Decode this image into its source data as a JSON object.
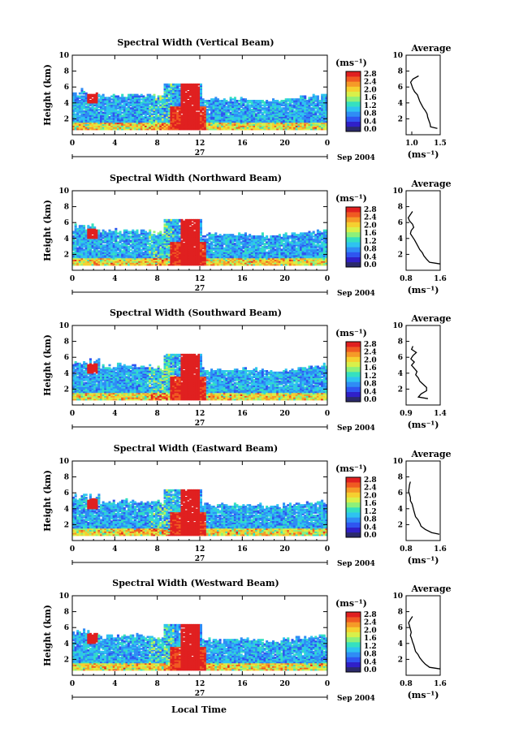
{
  "figure": {
    "xlabel": "Local Time",
    "date_label": "Sep 2004",
    "day_label": "27",
    "ylabel": "Height (km)",
    "unit": "(ms⁻¹)",
    "average_title": "Average",
    "avg_xlabel": "(ms⁻¹)",
    "x_ticks": [
      "0",
      "4",
      "8",
      "12",
      "16",
      "20",
      "0"
    ],
    "y_ticks": [
      "2",
      "4",
      "6",
      "8",
      "10"
    ],
    "colorbar_ticks": [
      "0.0",
      "0.4",
      "0.8",
      "1.2",
      "1.6",
      "2.0",
      "2.4",
      "2.8"
    ],
    "colormap": [
      "#2b2a6b",
      "#3020c8",
      "#2f55f0",
      "#2f8cf5",
      "#2ec3f0",
      "#35e0c0",
      "#8df07a",
      "#d8f04a",
      "#f5d030",
      "#f59a28",
      "#f05a22",
      "#e02020"
    ]
  },
  "chart_data": [
    {
      "type": "heatmap",
      "title": "Spectral Width (Vertical Beam)",
      "x_range_hours": [
        0,
        24
      ],
      "ylim_km": [
        0,
        10
      ],
      "clim": [
        0.0,
        2.8
      ],
      "average_profile": {
        "title": "Average",
        "xlabel": "(ms⁻¹)",
        "xlim": [
          0.9,
          1.5
        ],
        "xticks": [
          "1.0",
          "1.5"
        ],
        "ylim": [
          0,
          10
        ],
        "height_km": [
          0.8,
          1.0,
          1.4,
          1.8,
          2.2,
          2.6,
          3.0,
          3.4,
          3.8,
          4.2,
          4.6,
          5.0,
          5.4,
          5.8,
          6.2,
          6.6,
          7.0,
          7.4
        ],
        "width_ms": [
          1.45,
          1.33,
          1.32,
          1.3,
          1.28,
          1.27,
          1.24,
          1.2,
          1.17,
          1.14,
          1.12,
          1.1,
          1.05,
          1.02,
          1.0,
          0.98,
          1.02,
          1.12
        ]
      }
    },
    {
      "type": "heatmap",
      "title": "Spectral Width (Northward Beam)",
      "x_range_hours": [
        0,
        24
      ],
      "ylim_km": [
        0,
        10
      ],
      "clim": [
        0.0,
        2.8
      ],
      "average_profile": {
        "title": "Average",
        "xlabel": "(ms⁻¹)",
        "xlim": [
          0.8,
          1.6
        ],
        "xticks": [
          "0.8",
          "1.6"
        ],
        "ylim": [
          0,
          10
        ],
        "height_km": [
          0.8,
          1.0,
          1.4,
          1.8,
          2.2,
          2.6,
          3.0,
          3.4,
          3.8,
          4.2,
          4.6,
          5.0,
          5.4,
          5.8,
          6.2,
          6.6,
          7.0,
          7.4
        ],
        "width_ms": [
          1.6,
          1.35,
          1.28,
          1.22,
          1.18,
          1.12,
          1.08,
          1.04,
          1.0,
          0.95,
          0.9,
          0.92,
          0.98,
          0.95,
          0.88,
          0.85,
          0.9,
          0.95
        ]
      }
    },
    {
      "type": "heatmap",
      "title": "Spectral Width (Southward Beam)",
      "x_range_hours": [
        0,
        24
      ],
      "ylim_km": [
        0,
        10
      ],
      "clim": [
        0.0,
        2.8
      ],
      "average_profile": {
        "title": "Average",
        "xlabel": "(ms⁻¹)",
        "xlim": [
          0.9,
          1.4
        ],
        "xticks": [
          "0.9",
          "1.4"
        ],
        "ylim": [
          0,
          10
        ],
        "height_km": [
          0.8,
          1.0,
          1.4,
          1.8,
          2.2,
          2.6,
          3.0,
          3.4,
          3.8,
          4.2,
          4.6,
          5.0,
          5.4,
          5.8,
          6.2,
          6.6,
          7.0,
          7.4
        ],
        "width_ms": [
          1.22,
          1.08,
          1.12,
          1.2,
          1.2,
          1.15,
          1.1,
          1.08,
          1.04,
          1.06,
          1.02,
          0.98,
          1.02,
          0.97,
          1.0,
          1.05,
          0.98,
          1.0
        ]
      }
    },
    {
      "type": "heatmap",
      "title": "Spectral Width (Eastward Beam)",
      "x_range_hours": [
        0,
        24
      ],
      "ylim_km": [
        0,
        10
      ],
      "clim": [
        0.0,
        2.8
      ],
      "average_profile": {
        "title": "Average",
        "xlabel": "(ms⁻¹)",
        "xlim": [
          0.8,
          1.6
        ],
        "xticks": [
          "0.8",
          "1.6"
        ],
        "ylim": [
          0,
          10
        ],
        "height_km": [
          0.8,
          1.0,
          1.4,
          1.8,
          2.2,
          2.6,
          3.0,
          3.4,
          3.8,
          4.2,
          4.6,
          5.0,
          5.4,
          5.8,
          6.2,
          6.6,
          7.0,
          7.4
        ],
        "width_ms": [
          1.58,
          1.4,
          1.25,
          1.15,
          1.12,
          1.08,
          1.02,
          1.0,
          0.98,
          0.96,
          0.94,
          0.9,
          0.9,
          0.88,
          0.86,
          0.87,
          0.88,
          0.9
        ]
      }
    },
    {
      "type": "heatmap",
      "title": "Spectral Width (Westward Beam)",
      "x_range_hours": [
        0,
        24
      ],
      "ylim_km": [
        0,
        10
      ],
      "clim": [
        0.0,
        2.8
      ],
      "average_profile": {
        "title": "Average",
        "xlabel": "(ms⁻¹)",
        "xlim": [
          0.8,
          1.6
        ],
        "xticks": [
          "0.8",
          "1.6"
        ],
        "ylim": [
          0,
          10
        ],
        "height_km": [
          0.8,
          1.0,
          1.4,
          1.8,
          2.2,
          2.6,
          3.0,
          3.4,
          3.8,
          4.2,
          4.6,
          5.0,
          5.4,
          5.8,
          6.2,
          6.6,
          7.0,
          7.4
        ],
        "width_ms": [
          1.6,
          1.35,
          1.25,
          1.18,
          1.12,
          1.08,
          1.02,
          1.0,
          0.98,
          0.95,
          0.93,
          0.9,
          0.92,
          0.9,
          0.88,
          0.86,
          0.9,
          0.95
        ]
      }
    }
  ]
}
